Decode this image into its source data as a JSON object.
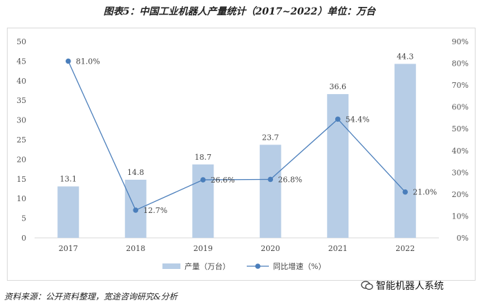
{
  "title": "图表5：中国工业机器人产量统计（2017~2022）单位：万台",
  "source": "资料来源：公开资料整理，宽途咨询研究&分析",
  "brand": {
    "text": "智能机器人系统",
    "icon": "wechat-icon"
  },
  "chart_data": {
    "type": "bar+line",
    "categories": [
      "2017",
      "2018",
      "2019",
      "2020",
      "2021",
      "2022"
    ],
    "series": [
      {
        "name": "产量（万台）",
        "type": "bar",
        "axis": "left",
        "color": "#b7cde6",
        "values": [
          13.1,
          14.8,
          18.7,
          23.7,
          36.6,
          44.3
        ],
        "labels": [
          "13.1",
          "14.8",
          "18.7",
          "23.7",
          "36.6",
          "44.3"
        ]
      },
      {
        "name": "同比增速（%）",
        "type": "line",
        "axis": "right",
        "color": "#4a7ebb",
        "values": [
          81.0,
          12.7,
          26.6,
          26.8,
          54.4,
          21.0
        ],
        "labels": [
          "81.0%",
          "12.7%",
          "26.6%",
          "26.8%",
          "54.4%",
          "21.0%"
        ]
      }
    ],
    "y_left": {
      "ylim": [
        0,
        50
      ],
      "ticks": [
        "0",
        "5",
        "10",
        "15",
        "20",
        "25",
        "30",
        "35",
        "40",
        "45",
        "50"
      ]
    },
    "y_right": {
      "ylim": [
        0,
        90
      ],
      "ticks": [
        "0%",
        "10%",
        "20%",
        "30%",
        "40%",
        "50%",
        "60%",
        "70%",
        "80%",
        "90%"
      ]
    },
    "grid": false,
    "legend": "bottom"
  }
}
